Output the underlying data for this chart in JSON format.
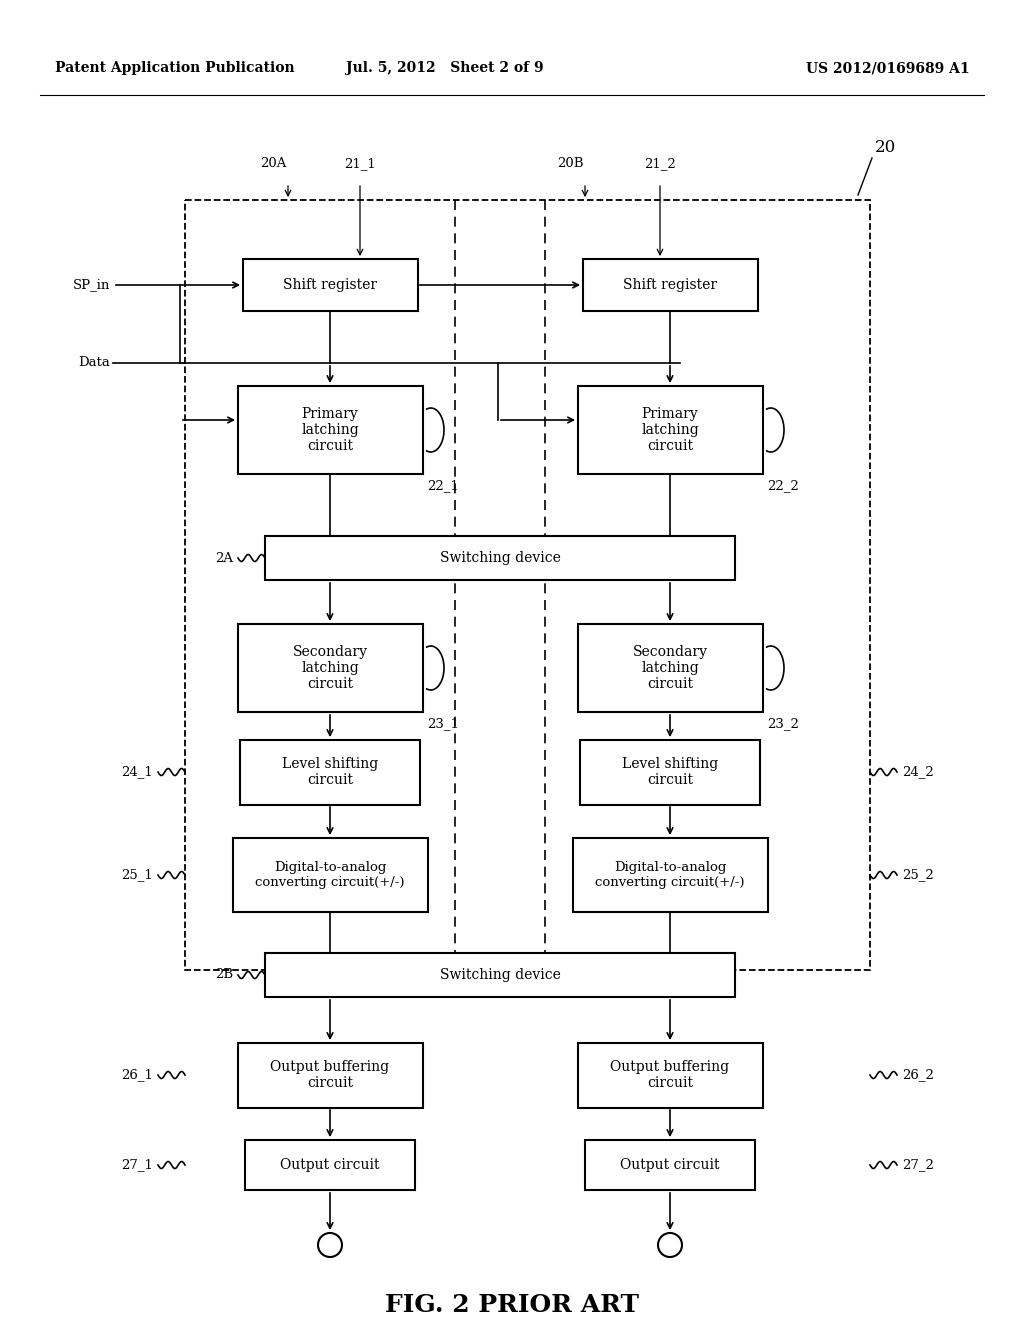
{
  "bg_color": "#ffffff",
  "header_left": "Patent Application Publication",
  "header_mid": "Jul. 5, 2012   Sheet 2 of 9",
  "header_right": "US 2012/0169689 A1",
  "caption": "FIG. 2 PRIOR ART",
  "label_20": "20",
  "label_20A": "20A",
  "label_20B": "20B",
  "label_21_1": "21_1",
  "label_21_2": "21_2",
  "label_22_1": "22_1",
  "label_22_2": "22_2",
  "label_23_1": "23_1",
  "label_23_2": "23_2",
  "label_24_1": "24_1",
  "label_24_2": "24_2",
  "label_25_1": "25_1",
  "label_25_2": "25_2",
  "label_26_1": "26_1",
  "label_26_2": "26_2",
  "label_27_1": "27_1",
  "label_27_2": "27_2",
  "label_2A": "2A",
  "label_2B": "2B",
  "label_SP_in": "SP_in",
  "label_Data": "Data",
  "box_shift1": "Shift register",
  "box_shift2": "Shift register",
  "box_primary1": "Primary\nlatching\ncircuit",
  "box_primary2": "Primary\nlatching\ncircuit",
  "box_switching_A": "Switching device",
  "box_secondary1": "Secondary\nlatching\ncircuit",
  "box_secondary2": "Secondary\nlatching\ncircuit",
  "box_level1": "Level shifting\ncircuit",
  "box_level2": "Level shifting\ncircuit",
  "box_dac1": "Digital-to-analog\nconverting circuit(+/-)",
  "box_dac2": "Digital-to-analog\nconverting circuit(+/-)",
  "box_switching_B": "Switching device",
  "box_output_buf1": "Output buffering\ncircuit",
  "box_output_buf2": "Output buffering\ncircuit",
  "box_output1": "Output circuit",
  "box_output2": "Output circuit"
}
